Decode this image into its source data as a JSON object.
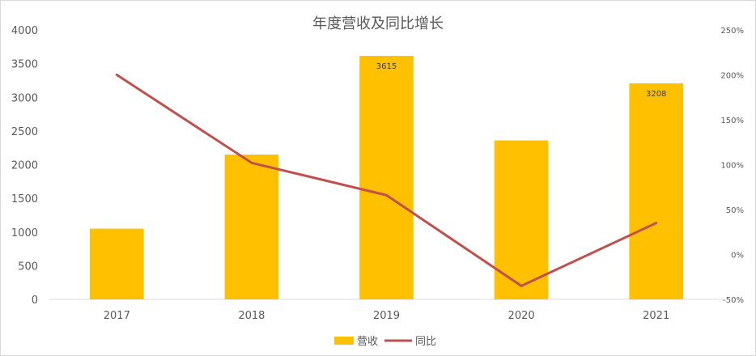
{
  "chart_data": {
    "type": "bar",
    "title": "年度营收及同比增长",
    "categories": [
      "2017",
      "2018",
      "2019",
      "2020",
      "2021"
    ],
    "series": [
      {
        "name": "营收",
        "type": "bar",
        "axis": "left",
        "color": "#FFC000",
        "values": [
          1050,
          2150,
          3615,
          2360,
          3208
        ],
        "data_labels": [
          null,
          null,
          "3615",
          null,
          "3208"
        ]
      },
      {
        "name": "同比",
        "type": "line",
        "axis": "right",
        "color": "#C0504D",
        "values": [
          2.0,
          1.02,
          0.66,
          -0.35,
          0.35
        ]
      }
    ],
    "ylim": [
      0,
      4000
    ],
    "yticks": [
      "0",
      "500",
      "1000",
      "1500",
      "2000",
      "2500",
      "3000",
      "3500",
      "4000"
    ],
    "y2lim": [
      -0.5,
      2.5
    ],
    "y2ticks": [
      "-50%",
      "0%",
      "50%",
      "100%",
      "150%",
      "200%",
      "250%"
    ],
    "legend_position": "bottom",
    "grid": false
  }
}
